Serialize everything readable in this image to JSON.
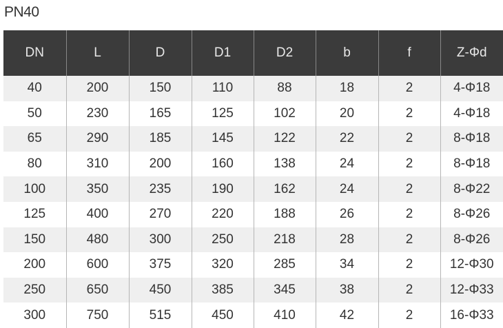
{
  "title": "PN40",
  "table": {
    "headers": [
      "DN",
      "L",
      "D",
      "D1",
      "D2",
      "b",
      "f",
      "Z-Φd"
    ],
    "rows": [
      [
        "40",
        "200",
        "150",
        "110",
        "88",
        "18",
        "2",
        "4-Φ18"
      ],
      [
        "50",
        "230",
        "165",
        "125",
        "102",
        "20",
        "2",
        "4-Φ18"
      ],
      [
        "65",
        "290",
        "185",
        "145",
        "122",
        "22",
        "2",
        "8-Φ18"
      ],
      [
        "80",
        "310",
        "200",
        "160",
        "138",
        "24",
        "2",
        "8-Φ18"
      ],
      [
        "100",
        "350",
        "235",
        "190",
        "162",
        "24",
        "2",
        "8-Φ22"
      ],
      [
        "125",
        "400",
        "270",
        "220",
        "188",
        "26",
        "2",
        "8-Φ26"
      ],
      [
        "150",
        "480",
        "300",
        "250",
        "218",
        "28",
        "2",
        "8-Φ26"
      ],
      [
        "200",
        "600",
        "375",
        "320",
        "285",
        "34",
        "2",
        "12-Φ30"
      ],
      [
        "250",
        "650",
        "450",
        "385",
        "345",
        "38",
        "2",
        "12-Φ33"
      ],
      [
        "300",
        "750",
        "515",
        "450",
        "410",
        "42",
        "2",
        "16-Φ33"
      ]
    ]
  },
  "colors": {
    "header_bg": "#3b3b3b",
    "stripe": "#efefef"
  }
}
